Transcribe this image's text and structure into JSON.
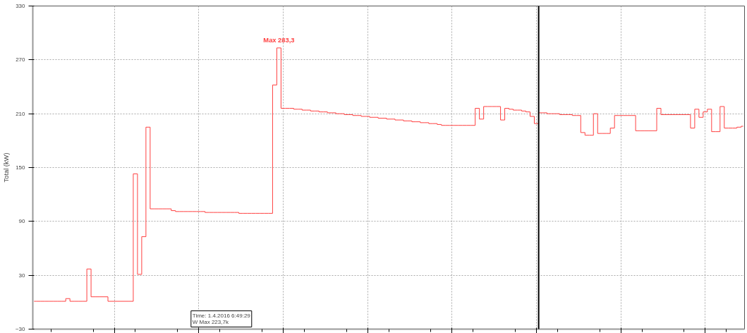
{
  "chart_data": {
    "type": "step",
    "ylabel": "Total (kW)",
    "categories": [
      null,
      null,
      null,
      null,
      null,
      null,
      null,
      null,
      null,
      null,
      null,
      null,
      null,
      null,
      null,
      null,
      null,
      null,
      null,
      null,
      null,
      null,
      null,
      null,
      null,
      null,
      null,
      null,
      null,
      null,
      null,
      null,
      null,
      null,
      null,
      null,
      null,
      null,
      null,
      null,
      null,
      null,
      null,
      null,
      null,
      null,
      null,
      null,
      null,
      null,
      null,
      null,
      null,
      null,
      null,
      null,
      null,
      null,
      null,
      null,
      null,
      null,
      null,
      null,
      null,
      null,
      null,
      null,
      null,
      null,
      null,
      null,
      null,
      null,
      null,
      null,
      null,
      null,
      null,
      null,
      null,
      null,
      null,
      null,
      null,
      null,
      null,
      null,
      null,
      null,
      null,
      null,
      null,
      null,
      null,
      null,
      null,
      null,
      null,
      null,
      null,
      null,
      null,
      null,
      null,
      null,
      null,
      null,
      null,
      null,
      null,
      null,
      null,
      null,
      null,
      null,
      null,
      null,
      null,
      null,
      null,
      null,
      null,
      null,
      null,
      null,
      null,
      null,
      null,
      null,
      null,
      null,
      null,
      null,
      null,
      null,
      null,
      null,
      null,
      null,
      null,
      null,
      null,
      null,
      null,
      null,
      null,
      null,
      null,
      null,
      null,
      null,
      null,
      null,
      null,
      null,
      null,
      null,
      null,
      null,
      null,
      null,
      null,
      null,
      null,
      null,
      null,
      null,
      null
    ],
    "series": [
      {
        "color": "#ff4040",
        "values": [
          1,
          1,
          1,
          1,
          1,
          1,
          1,
          1,
          4,
          1,
          1,
          1,
          1,
          37,
          6,
          6,
          6,
          6,
          1,
          1,
          1,
          1,
          1,
          1,
          143,
          31,
          73,
          195,
          104,
          104,
          104,
          104,
          104,
          102,
          101,
          101,
          101,
          101,
          101,
          101,
          101,
          100,
          100,
          100,
          100,
          100,
          100,
          100,
          100,
          99,
          99,
          99,
          99,
          99,
          99,
          99,
          99,
          242,
          283.3,
          216,
          216,
          216,
          215,
          215,
          214,
          214,
          213,
          213,
          212,
          212,
          211,
          211,
          210,
          210,
          209,
          209,
          208,
          208,
          207,
          207,
          206,
          206,
          205,
          205,
          204,
          204,
          203,
          203,
          202,
          202,
          201,
          201,
          200,
          200,
          199,
          199,
          198,
          197,
          197,
          197,
          197,
          197,
          197,
          197,
          197,
          216,
          204,
          218,
          218,
          218,
          218,
          203,
          216,
          215,
          214,
          214,
          213,
          212,
          207,
          199,
          211,
          211,
          210,
          210,
          210,
          209,
          209,
          209,
          208,
          208,
          189,
          186,
          186,
          210,
          188,
          188,
          188,
          194,
          208,
          208,
          208,
          208,
          208,
          191,
          191,
          191,
          191,
          191,
          216,
          209,
          209,
          209,
          209,
          209,
          209,
          209,
          194,
          215,
          206,
          212,
          215,
          190,
          190,
          218,
          194,
          194,
          194,
          195,
          196
        ]
      }
    ],
    "ylim": [
      -30,
      330
    ],
    "yticks": [
      -30,
      30,
      90,
      150,
      210,
      270,
      330
    ],
    "grid": true,
    "line_style": "solid",
    "marker": "none",
    "annotations": [
      "Max 283,3",
      "Time: 1.4.2016 6:49:29\nW Max 223,7k"
    ]
  }
}
